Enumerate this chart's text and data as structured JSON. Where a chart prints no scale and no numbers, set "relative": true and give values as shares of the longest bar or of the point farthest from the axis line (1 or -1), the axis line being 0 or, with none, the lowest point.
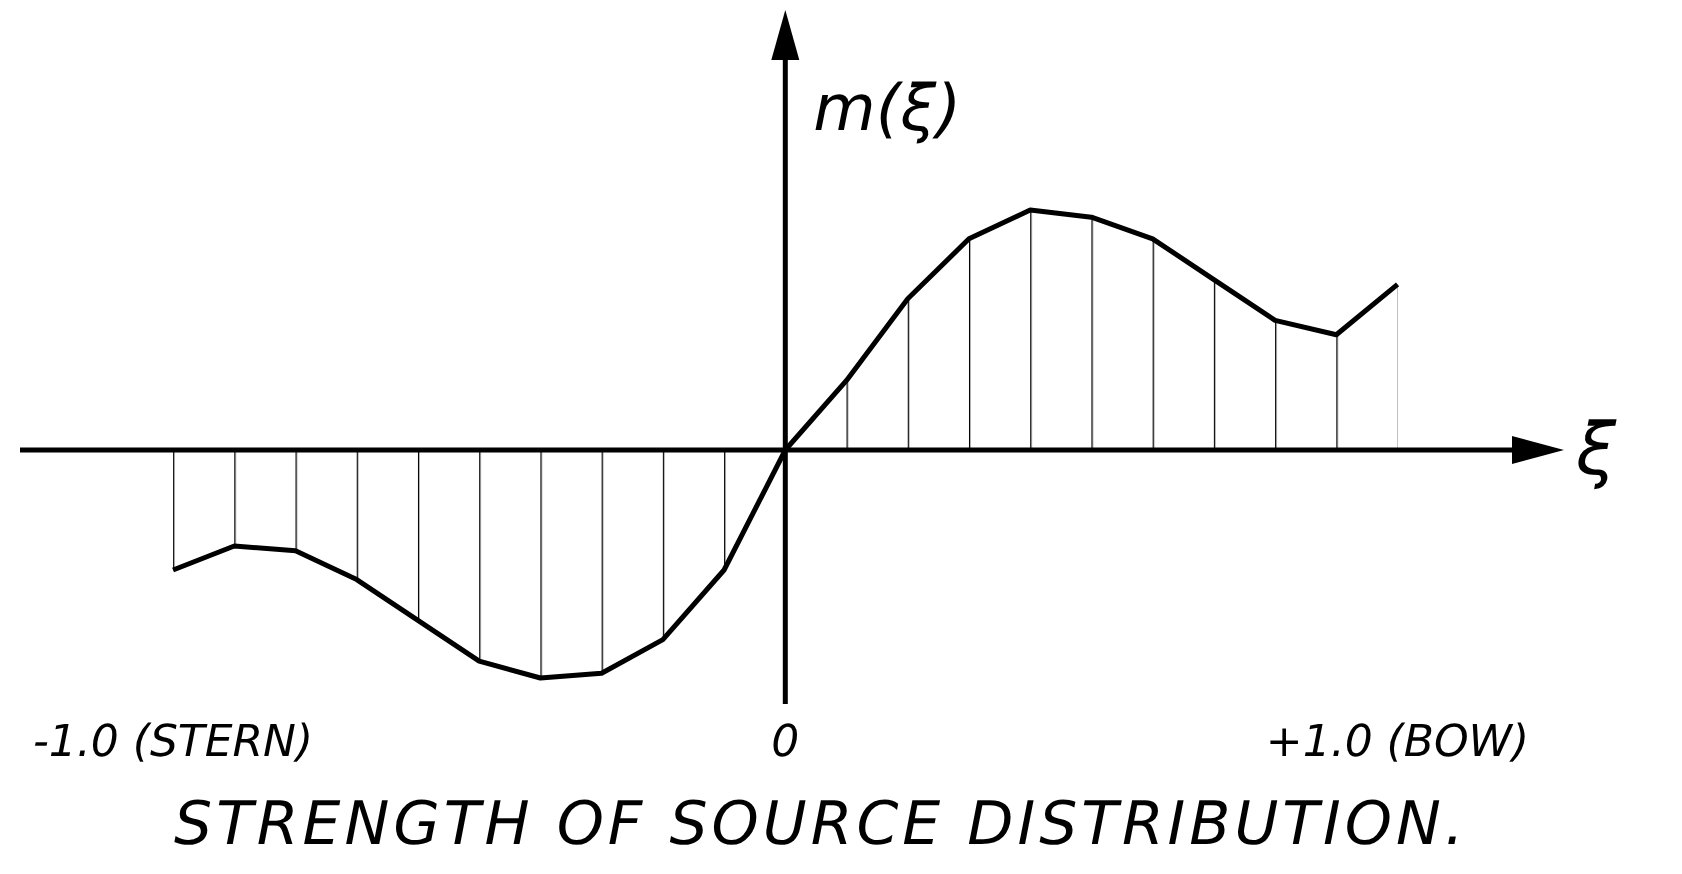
{
  "chart_data": {
    "type": "area",
    "title": "STRENGTH OF SOURCE DISTRIBUTION.",
    "xlabel": "ξ",
    "ylabel": "m(ξ)",
    "relative": true,
    "color": "#000000",
    "x": [
      -1,
      -0.9,
      -0.8,
      -0.7,
      -0.6,
      -0.5,
      -0.4,
      -0.3,
      -0.2,
      -0.1,
      0,
      0.1,
      0.2,
      0.3,
      0.4,
      0.5,
      0.6,
      0.7,
      0.8,
      0.9,
      1
    ],
    "values": [
      -0.5,
      -0.4,
      -0.42,
      -0.54,
      -0.71,
      -0.88,
      -0.95,
      -0.93,
      -0.79,
      -0.5,
      0,
      0.29,
      0.63,
      0.88,
      1,
      0.97,
      0.88,
      0.71,
      0.54,
      0.48,
      0.69
    ],
    "xlim": [
      -1.25,
      1.2
    ],
    "xticks": [
      {
        "value": -1,
        "label": "-1.0 (STERN)"
      },
      0,
      {
        "value": 1,
        "label": "+1.0 (BOW)"
      }
    ]
  }
}
